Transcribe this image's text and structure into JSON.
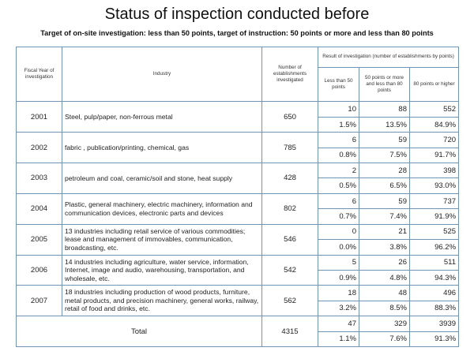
{
  "title": "Status of inspection conducted before",
  "subtitle": "Target of on-site investigation: less than 50 points, target of instruction: 50 points or more and less than 80 points",
  "headers": {
    "fiscal_year": "Fiscal Year of investigation",
    "industry": "Industry",
    "number": "Number of establishments investigated",
    "result_group": "Result of investigation (number of establishments by points)",
    "less_than_50": "Less than 50 points",
    "from_50_to_80": "50 points or more and less than 80 points",
    "over_80": "80 points or higher"
  },
  "rows": [
    {
      "year": "2001",
      "industry": "Steel, pulp/paper, non-ferrous metal",
      "number": "650",
      "counts": [
        "10",
        "88",
        "552"
      ],
      "percents": [
        "1.5%",
        "13.5%",
        "84.9%"
      ]
    },
    {
      "year": "2002",
      "industry": "fabric , publication/printing, chemical, gas",
      "number": "785",
      "counts": [
        "6",
        "59",
        "720"
      ],
      "percents": [
        "0.8%",
        "7.5%",
        "91.7%"
      ]
    },
    {
      "year": "2003",
      "industry": "petroleum and coal, ceramic/soil and stone, heat supply",
      "number": "428",
      "counts": [
        "2",
        "28",
        "398"
      ],
      "percents": [
        "0.5%",
        "6.5%",
        "93.0%"
      ]
    },
    {
      "year": "2004",
      "industry": "Plastic, general machinery, electric machinery, information and communication devices, electronic parts and devices",
      "number": "802",
      "counts": [
        "6",
        "59",
        "737"
      ],
      "percents": [
        "0.7%",
        "7.4%",
        "91.9%"
      ]
    },
    {
      "year": "2005",
      "industry": "13 industries including retail service of various commodities; lease and management of immovables, communication, broadcasting, etc.",
      "number": "546",
      "counts": [
        "0",
        "21",
        "525"
      ],
      "percents": [
        "0.0%",
        "3.8%",
        "96.2%"
      ]
    },
    {
      "year": "2006",
      "industry": "14 industries including agriculture, water service, information, Internet, image and audio, warehousing, transportation, and wholesale, etc.",
      "number": "542",
      "counts": [
        "5",
        "26",
        "511"
      ],
      "percents": [
        "0.9%",
        "4.8%",
        "94.3%"
      ]
    },
    {
      "year": "2007",
      "industry": "18 industries including production of wood products, furniture, metal products, and precision machinery, general works, railway, retail of food and drinks, etc.",
      "number": "562",
      "counts": [
        "18",
        "48",
        "496"
      ],
      "percents": [
        "3.2%",
        "8.5%",
        "88.3%"
      ]
    }
  ],
  "total": {
    "label": "Total",
    "number": "4315",
    "counts": [
      "47",
      "329",
      "3939"
    ],
    "percents": [
      "1.1%",
      "7.6%",
      "91.3%"
    ]
  }
}
